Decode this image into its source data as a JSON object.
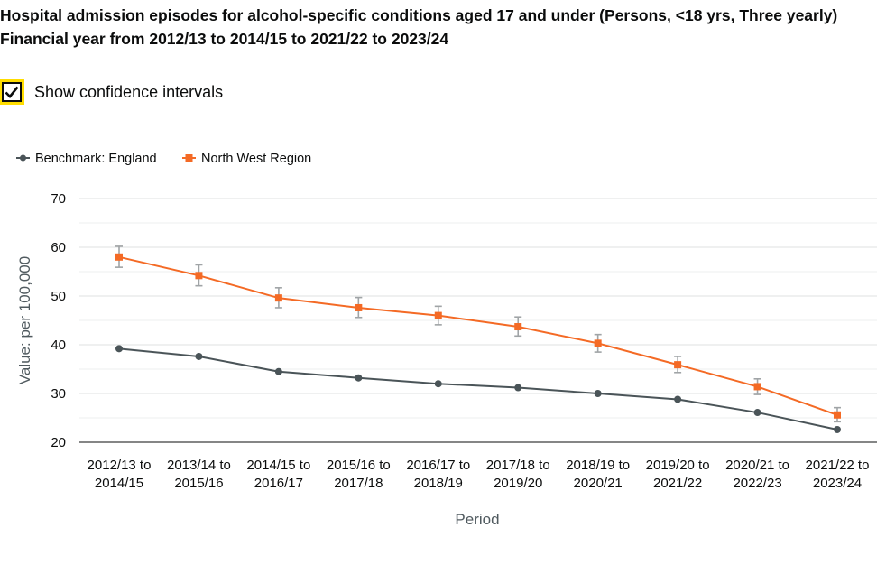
{
  "title_line1": "Hospital admission episodes for alcohol-specific conditions aged 17 and under (Persons, <18 yrs, Three yearly)",
  "title_line2": "Financial year from 2012/13 to 2014/15 to 2021/22 to 2023/24",
  "confidence_toggle": {
    "label": "Show confidence intervals",
    "checked": true
  },
  "chart_data": {
    "type": "line",
    "categories": [
      [
        "2012/13 to",
        "2014/15"
      ],
      [
        "2013/14 to",
        "2015/16"
      ],
      [
        "2014/15 to",
        "2016/17"
      ],
      [
        "2015/16 to",
        "2017/18"
      ],
      [
        "2016/17 to",
        "2018/19"
      ],
      [
        "2017/18 to",
        "2019/20"
      ],
      [
        "2018/19 to",
        "2020/21"
      ],
      [
        "2019/20 to",
        "2021/22"
      ],
      [
        "2020/21 to",
        "2022/23"
      ],
      [
        "2021/22 to",
        "2023/24"
      ]
    ],
    "series": [
      {
        "name": "Benchmark: England",
        "color": "#4a5458",
        "marker": "circle",
        "values": [
          39.2,
          37.6,
          34.5,
          33.2,
          32.0,
          31.2,
          30.0,
          28.8,
          26.1,
          22.6
        ]
      },
      {
        "name": "North West Region",
        "color": "#f46a25",
        "marker": "square",
        "values": [
          58.0,
          54.2,
          49.6,
          47.6,
          46.0,
          43.7,
          40.3,
          35.9,
          31.4,
          25.6
        ],
        "ci_lower": [
          55.9,
          52.1,
          47.6,
          45.6,
          44.1,
          41.8,
          38.5,
          34.3,
          29.8,
          24.2
        ],
        "ci_upper": [
          60.2,
          56.4,
          51.7,
          49.7,
          47.9,
          45.7,
          42.1,
          37.6,
          33.0,
          27.1
        ]
      }
    ],
    "ci_color": "#a0a4a6",
    "y_ticks": [
      20,
      30,
      40,
      50,
      60,
      70
    ],
    "ylim": [
      20,
      70
    ],
    "xlabel": "Period",
    "ylabel": "Value: per 100,000",
    "grid": true,
    "legend_position": "top-left"
  }
}
